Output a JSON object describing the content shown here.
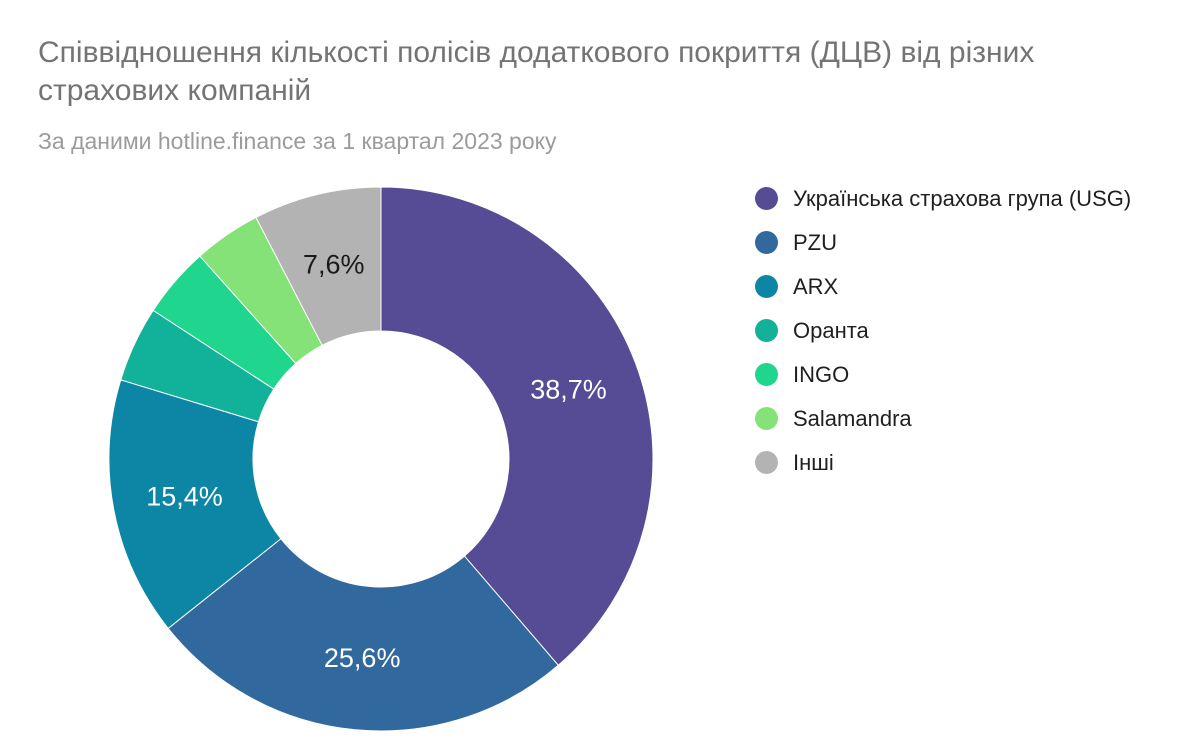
{
  "chart_data": {
    "type": "pie",
    "donut": true,
    "title": "Співвідношення кількості полісів додаткового покриття (ДЦВ) від різних страхових компаній",
    "subtitle": "За даними hotline.finance за 1 квартал 2023 року",
    "start_angle_deg": 0,
    "direction": "clockwise",
    "inner_radius_ratio": 0.47,
    "legend_position": "right",
    "label_format": "percent, comma decimal",
    "slices": [
      {
        "key": "usg",
        "name": "Українська страхова група (USG)",
        "value_pct": 38.7,
        "color": "#564b95",
        "label": "38,7%",
        "label_color": "#ffffff"
      },
      {
        "key": "pzu",
        "name": "PZU",
        "value_pct": 25.6,
        "color": "#31699e",
        "label": "25,6%",
        "label_color": "#ffffff"
      },
      {
        "key": "arx",
        "name": "ARX",
        "value_pct": 15.4,
        "color": "#0d86a6",
        "label": "15,4%",
        "label_color": "#ffffff"
      },
      {
        "key": "oranta",
        "name": "Оранта",
        "value_pct": 4.5,
        "color": "#12b199",
        "label": null,
        "label_color": null
      },
      {
        "key": "ingo",
        "name": "INGO",
        "value_pct": 4.2,
        "color": "#20d58e",
        "label": null,
        "label_color": null
      },
      {
        "key": "salamandra",
        "name": "Salamandra",
        "value_pct": 4.0,
        "color": "#85e278",
        "label": null,
        "label_color": null
      },
      {
        "key": "inshi",
        "name": "Інші",
        "value_pct": 7.6,
        "color": "#b3b3b3",
        "label": "7,6%",
        "label_color": "#1a1a1a"
      }
    ]
  },
  "colors": {
    "background": "#ffffff",
    "title_text": "#747474",
    "subtitle_text": "#9b9b9b",
    "legend_text": "#1f1f1f",
    "slice_separator": "#ffffff"
  }
}
